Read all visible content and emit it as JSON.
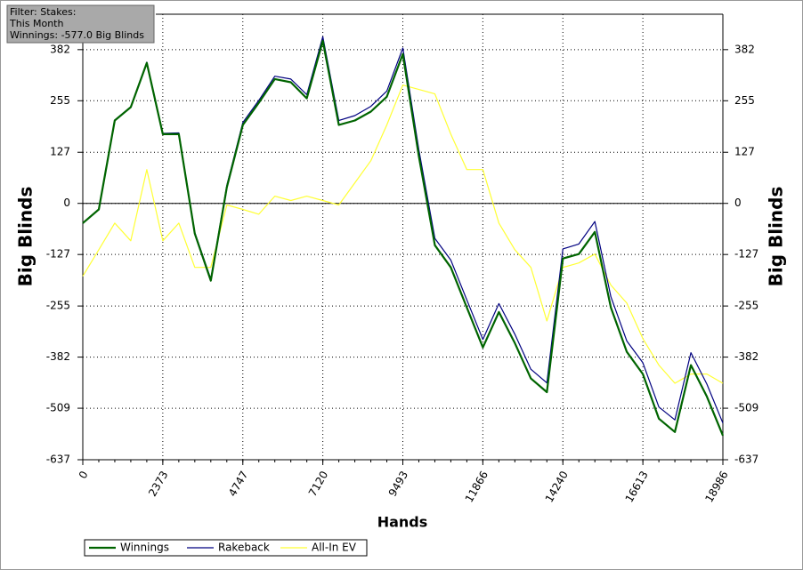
{
  "chart_data": {
    "type": "line",
    "annotations": [
      "Filter: Stakes:",
      "This Month",
      "Winnings: -577.0 Big Blinds"
    ],
    "x_label": "Hands",
    "y_label": "Big Blinds",
    "y2_label": "Big Blinds",
    "x": [
      0,
      475,
      949,
      1424,
      1899,
      2373,
      2848,
      3323,
      3797,
      4272,
      4747,
      5221,
      5696,
      6171,
      6645,
      7120,
      7595,
      8069,
      8544,
      9019,
      9493,
      9968,
      10443,
      10917,
      11392,
      11866,
      12341,
      12816,
      13290,
      13765,
      14240,
      14714,
      15189,
      15664,
      16138,
      16613,
      17088,
      17562,
      18037,
      18511,
      18986
    ],
    "xlim": [
      0,
      18986
    ],
    "xticks": [
      0,
      2373,
      4747,
      7120,
      9493,
      11866,
      14240,
      16613,
      18986
    ],
    "ylim": [
      -637,
      470
    ],
    "yticks": [
      -637,
      -509,
      -382,
      -255,
      -127,
      0,
      127,
      255,
      382
    ],
    "y2lim": [
      -637,
      470
    ],
    "y2ticks": [
      -637,
      -509,
      -382,
      -255,
      -127,
      0,
      127,
      255,
      382
    ],
    "grid": true,
    "series": [
      {
        "name": "Winnings",
        "color": "#006400",
        "values": [
          -49,
          -15,
          206,
          239,
          349,
          172,
          172,
          -75,
          -192,
          40,
          195,
          250,
          309,
          301,
          261,
          404,
          195,
          206,
          228,
          265,
          371,
          117,
          -104,
          -159,
          -259,
          -358,
          -270,
          -347,
          -435,
          -469,
          -137,
          -126,
          -71,
          -259,
          -369,
          -424,
          -535,
          -568,
          -402,
          -480,
          -577
        ]
      },
      {
        "name": "Rakeback",
        "color": "#000080",
        "values": [
          -49,
          -15,
          207,
          240,
          351,
          174,
          175,
          -72,
          -188,
          45,
          201,
          256,
          316,
          309,
          270,
          414,
          206,
          218,
          241,
          279,
          386,
          133,
          -87,
          -141,
          -240,
          -338,
          -249,
          -325,
          -412,
          -446,
          -113,
          -101,
          -45,
          -232,
          -342,
          -396,
          -506,
          -538,
          -371,
          -449,
          -546
        ]
      },
      {
        "name": "All-In EV",
        "color": "#ffff33",
        "values": [
          -181,
          -115,
          -49,
          -93,
          84,
          -93,
          -49,
          -159,
          -159,
          -4,
          -15,
          -27,
          18,
          7,
          18,
          7,
          -4,
          51,
          106,
          195,
          294,
          283,
          272,
          172,
          84,
          84,
          -49,
          -115,
          -159,
          -292,
          -159,
          -148,
          -126,
          -203,
          -248,
          -336,
          -402,
          -447,
          -424,
          -424,
          -447
        ]
      }
    ]
  }
}
